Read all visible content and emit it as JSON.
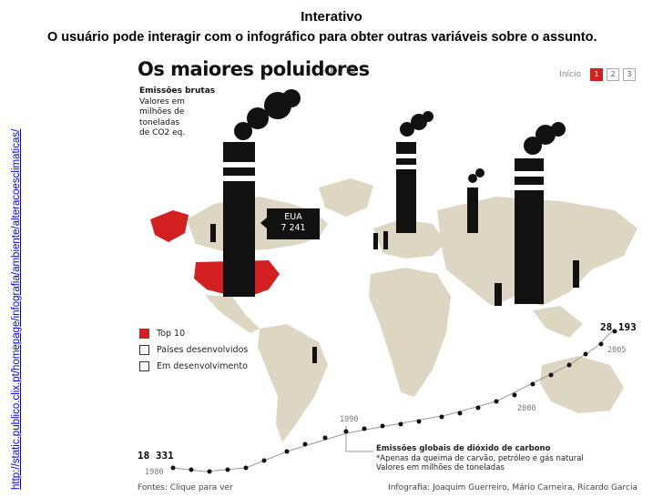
{
  "slide": {
    "title": "Interativo",
    "subtitle": "O usuário pode interagir com o infográfico para obter outras variáveis sobre o assunto.",
    "side_link": "http://static.publico.clix.pt/homepage/infografia/ambiente/alteracoesclimaticas/"
  },
  "infographic": {
    "title": "Os maiores poluidores",
    "subtitle": "- Top 10",
    "pager": {
      "label": "Início",
      "pages": [
        "1",
        "2",
        "3"
      ],
      "active": "1"
    },
    "emissions_title": "Emissões brutas",
    "emissions_lines": [
      "Valores em",
      "milhões de",
      "toneladas",
      "de CO2 eq."
    ],
    "tooltip": {
      "country": "EUA",
      "value": "7 241"
    },
    "legend": [
      "Top 10",
      "Países desenvolvidos",
      "Em desenvolvimento"
    ],
    "value_high": "28 193",
    "value_low": "18 331",
    "years": [
      "1980",
      "1990",
      "2000",
      "2005"
    ],
    "global_title": "Emissões globais de dióxido de carbono",
    "global_lines": [
      "*Apenas da queima de carvão, petróleo e gás natural",
      "Valores em milhões de toneladas"
    ],
    "footer_left": "Fontes: Clique para ver",
    "footer_right": "Infografia: Joaquim Guerreiro, Mário Carneira, Ricardo Garcia",
    "colors": {
      "land": "#ddd6c3",
      "top10": "#d21f1f",
      "chimney": "#111111"
    }
  }
}
